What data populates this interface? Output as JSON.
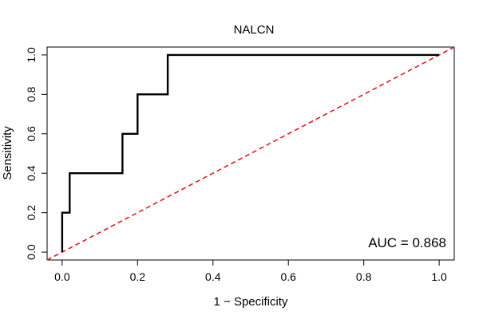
{
  "chart_data": {
    "type": "line",
    "title": "NALCN",
    "xlabel": "1 − Specificity",
    "ylabel": "Sensitivity",
    "xlim": [
      -0.04,
      1.04
    ],
    "ylim": [
      -0.04,
      1.04
    ],
    "xticks": [
      0.0,
      0.2,
      0.4,
      0.6,
      0.8,
      1.0
    ],
    "xtick_labels": [
      "0.0",
      "0.2",
      "0.4",
      "0.6",
      "0.8",
      "1.0"
    ],
    "yticks": [
      0.0,
      0.2,
      0.4,
      0.6,
      0.8,
      1.0
    ],
    "ytick_labels": [
      "0.0",
      "0.2",
      "0.4",
      "0.6",
      "0.8",
      "1.0"
    ],
    "grid": false,
    "series": [
      {
        "style": "solid",
        "color": "#000000",
        "x": [
          0.0,
          0.0,
          0.02,
          0.02,
          0.16,
          0.16,
          0.2,
          0.2,
          0.28,
          0.28,
          1.0
        ],
        "y": [
          0.0,
          0.2,
          0.2,
          0.4,
          0.4,
          0.6,
          0.6,
          0.8,
          0.8,
          1.0,
          1.0
        ]
      },
      {
        "style": "dashed",
        "color": "#e41a1c",
        "x": [
          -0.04,
          1.04
        ],
        "y": [
          -0.04,
          1.04
        ]
      }
    ],
    "annotation": "AUC = 0.868"
  }
}
